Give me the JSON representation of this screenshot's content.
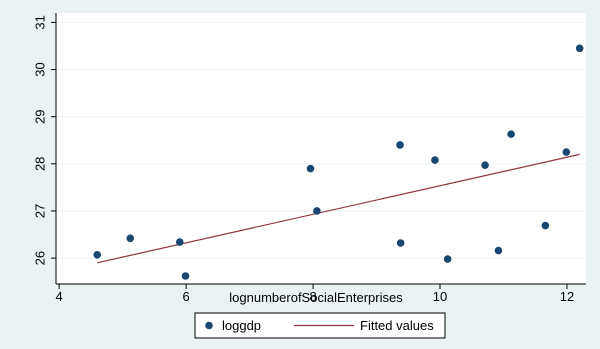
{
  "chart_data": {
    "type": "scatter",
    "xlabel": "lognumberofSocialEnterprises",
    "ylabel": "",
    "xlim": [
      3.95,
      12.3
    ],
    "ylim": [
      25.45,
      31.2
    ],
    "x_ticks": [
      4,
      6,
      8,
      10,
      12
    ],
    "y_ticks": [
      26,
      27,
      28,
      29,
      30,
      31
    ],
    "x_tick_labels": [
      "4",
      "6",
      "8",
      "10",
      "12"
    ],
    "y_tick_labels": [
      "26",
      "27",
      "28",
      "29",
      "30",
      "31"
    ],
    "grid": "horizontal",
    "legend_position": "bottom",
    "colors": {
      "figure_background": "#eaf2f3",
      "plot_background": "#ffffff",
      "grid": "#eaf2f3",
      "points": "#1a476f",
      "fit_line": "#90353b"
    },
    "series": [
      {
        "name": "loggdp",
        "type": "scatter",
        "x": [
          4.6,
          5.12,
          5.9,
          5.99,
          7.96,
          8.06,
          9.37,
          9.38,
          9.92,
          10.12,
          10.71,
          10.92,
          11.12,
          11.66,
          11.99,
          12.2
        ],
        "y": [
          26.07,
          26.42,
          26.34,
          25.62,
          27.9,
          27.0,
          28.4,
          26.32,
          28.08,
          25.98,
          27.97,
          26.16,
          28.63,
          26.69,
          28.25,
          30.45
        ]
      },
      {
        "name": "Fitted values",
        "type": "line",
        "x": [
          4.6,
          12.2
        ],
        "y": [
          25.9,
          28.2
        ]
      }
    ]
  }
}
